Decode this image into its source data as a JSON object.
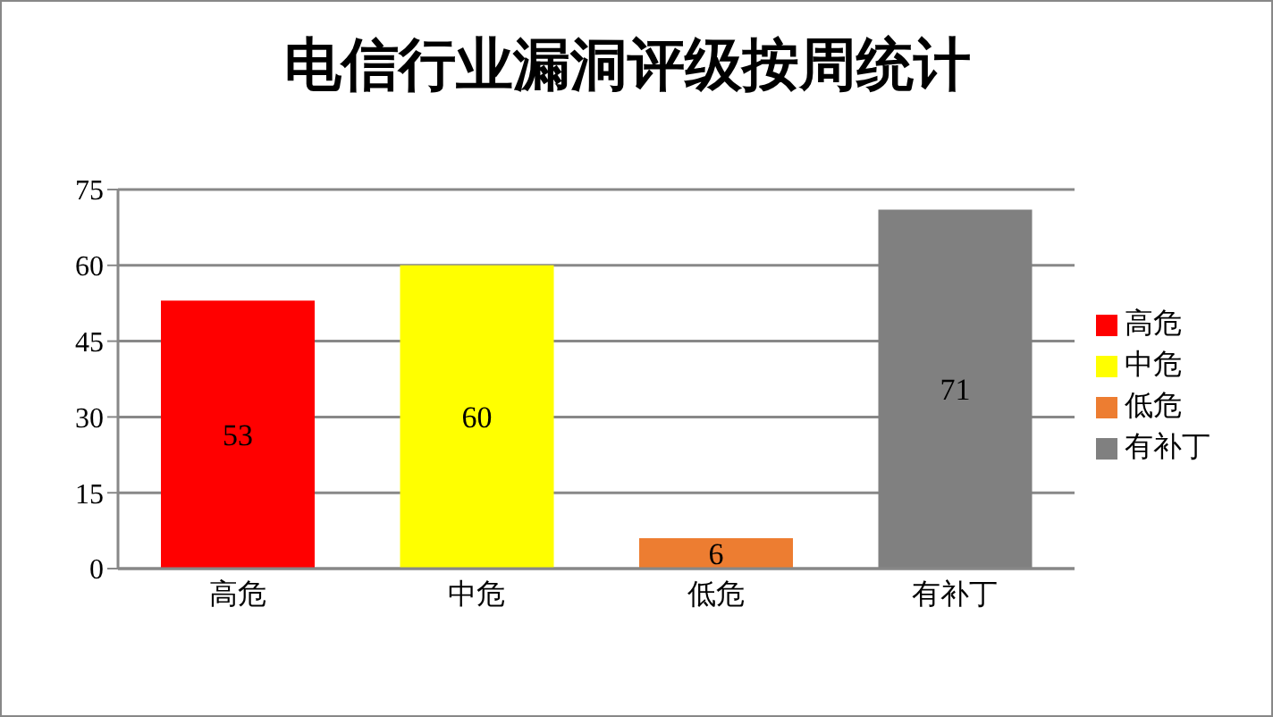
{
  "chart_data": {
    "type": "bar",
    "title": "电信行业漏洞评级按周统计",
    "categories": [
      "高危",
      "中危",
      "低危",
      "有补丁"
    ],
    "series": [
      {
        "name": "高危",
        "color": "#ff0000",
        "values": [
          53,
          null,
          null,
          null
        ]
      },
      {
        "name": "中危",
        "color": "#ffff00",
        "values": [
          null,
          60,
          null,
          null
        ]
      },
      {
        "name": "低危",
        "color": "#ed7d31",
        "values": [
          null,
          null,
          6,
          null
        ]
      },
      {
        "name": "有补丁",
        "color": "#808080",
        "values": [
          null,
          null,
          null,
          71
        ]
      }
    ],
    "stacked": true,
    "ylim": [
      0,
      75
    ],
    "yticks": [
      0,
      15,
      30,
      45,
      60,
      75
    ],
    "grid": "y",
    "legend": "right",
    "data_labels": true
  }
}
